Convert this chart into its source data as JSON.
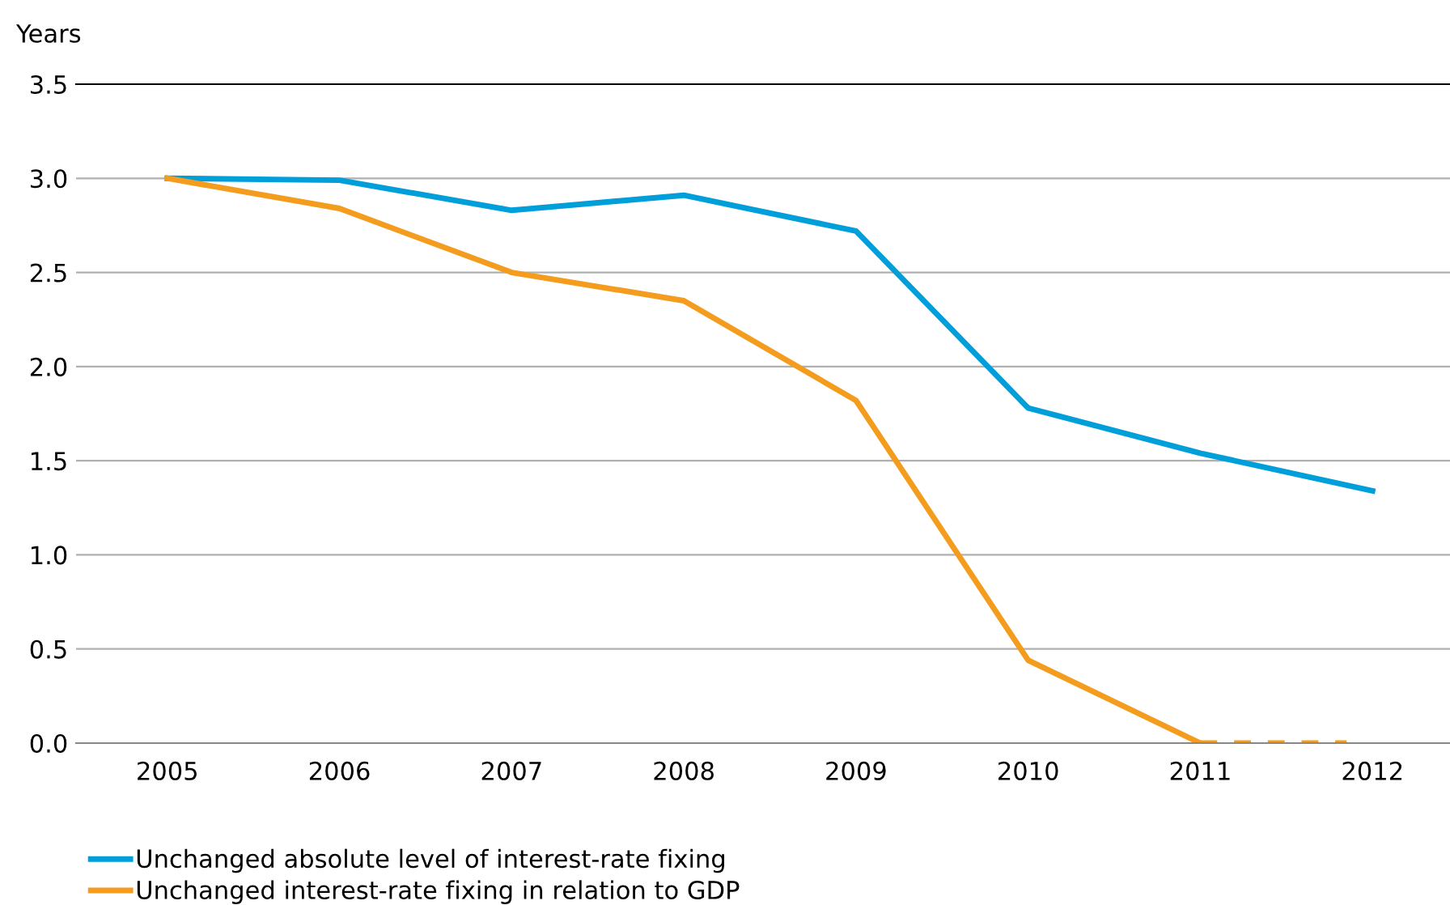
{
  "chart_data": {
    "type": "line",
    "ylabel": "Years",
    "x": [
      2005,
      2006,
      2007,
      2008,
      2009,
      2010,
      2011,
      2012
    ],
    "xlim": [
      2004.47,
      2012.45
    ],
    "xticks": [
      2005,
      2006,
      2007,
      2008,
      2009,
      2010,
      2011,
      2012
    ],
    "ylim": [
      0,
      3.5
    ],
    "yticks": [
      {
        "value": 0,
        "label": "0.0"
      },
      {
        "value": 0.5,
        "label": "0.5"
      },
      {
        "value": 1,
        "label": "1.0"
      },
      {
        "value": 1.5,
        "label": "1.5"
      },
      {
        "value": 2,
        "label": "2.0"
      },
      {
        "value": 2.5,
        "label": "2.5"
      },
      {
        "value": 3,
        "label": "3.0"
      },
      {
        "value": 3.5,
        "label": "3.5"
      }
    ],
    "grid": "y",
    "legend": "bottom left",
    "series": [
      {
        "name": "Unchanged absolute level of interest-rate fixing",
        "color": "#009fda",
        "values": [
          3.0,
          2.99,
          2.83,
          2.91,
          2.72,
          1.78,
          1.54,
          1.34
        ]
      },
      {
        "name": "Unchanged interest-rate fixing in relation to GDP",
        "color": "#f39c1d",
        "values": [
          3.0,
          2.84,
          2.5,
          2.35,
          1.82,
          0.44,
          0.0,
          null
        ]
      },
      {
        "color": "#f39c1d",
        "line_style": "dashed",
        "x": [
          2011,
          2011.85
        ],
        "values": [
          0.0,
          0.0
        ]
      }
    ]
  }
}
